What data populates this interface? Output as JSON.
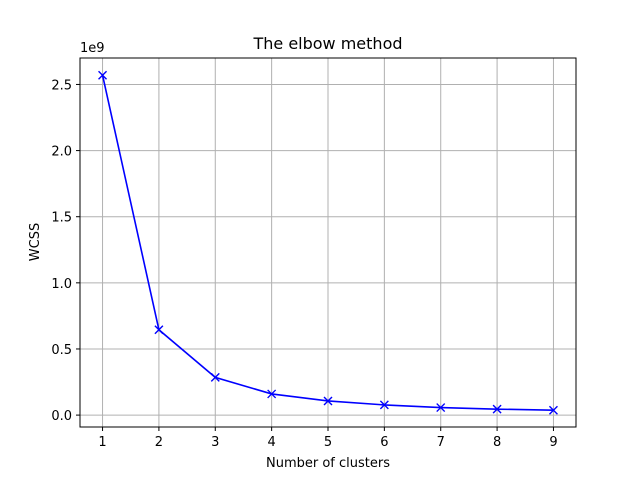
{
  "chart_data": {
    "type": "line",
    "title": "The elbow method",
    "xlabel": "Number of clusters",
    "ylabel": "WCSS",
    "offset_text": "1e9",
    "x": [
      1,
      2,
      3,
      4,
      5,
      6,
      7,
      8,
      9
    ],
    "series": [
      {
        "values": [
          2.57,
          0.645,
          0.285,
          0.16,
          0.107,
          0.077,
          0.057,
          0.045,
          0.037
        ],
        "color": "#0000ff",
        "marker": "x"
      }
    ],
    "xlim": [
      0.6,
      9.4
    ],
    "ylim": [
      -0.09,
      2.7
    ],
    "xticks": [
      1,
      2,
      3,
      4,
      5,
      6,
      7,
      8,
      9
    ],
    "yticks": [
      0.0,
      0.5,
      1.0,
      1.5,
      2.0,
      2.5
    ],
    "ytick_labels": [
      "0.0",
      "0.5",
      "1.0",
      "1.5",
      "2.0",
      "2.5"
    ],
    "grid": true
  }
}
